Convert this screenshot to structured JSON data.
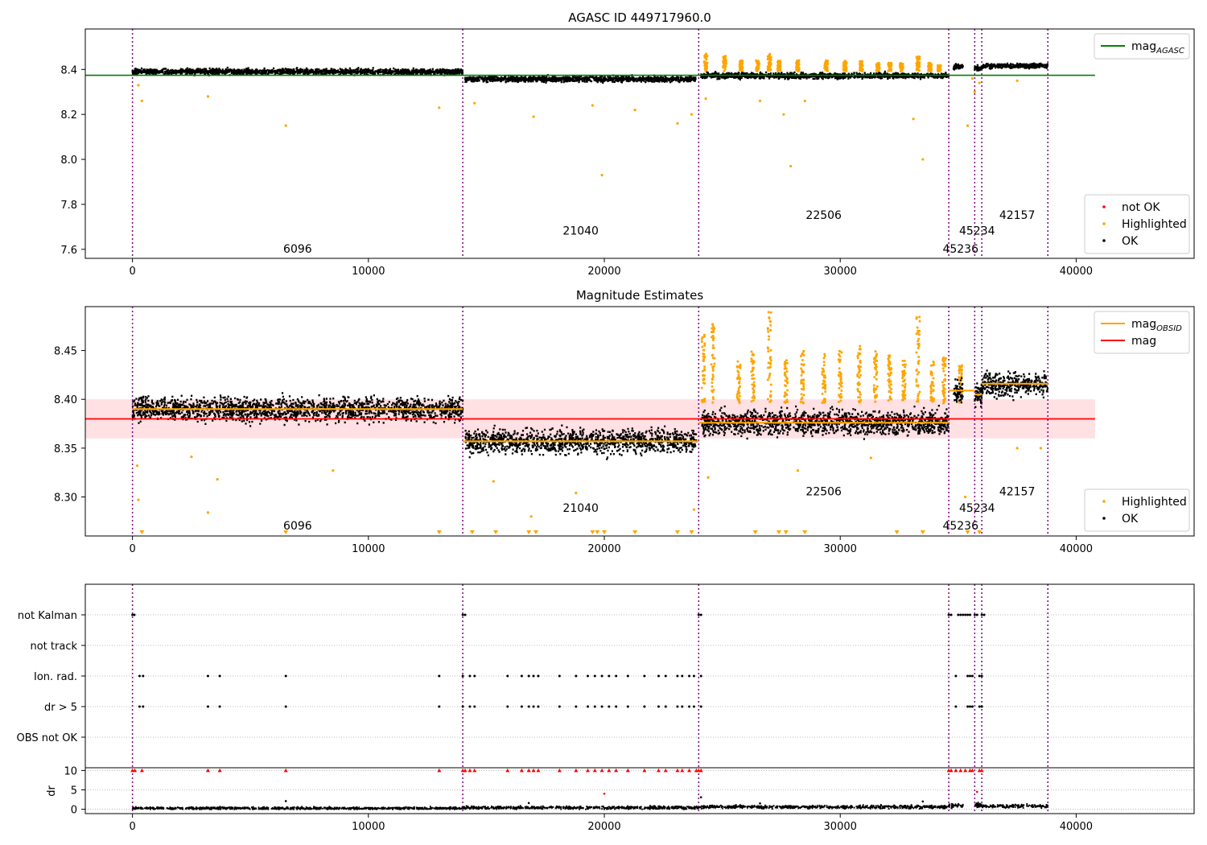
{
  "chart_data": [
    {
      "type": "scatter",
      "title": "AGASC ID 449717960.0",
      "xlim": [
        -2000,
        45000
      ],
      "ylim": [
        7.56,
        8.58
      ],
      "xticks": [
        0,
        10000,
        20000,
        30000,
        40000
      ],
      "xtick_labels": [
        "0",
        "10000",
        "20000",
        "30000",
        "40000"
      ],
      "yticks": [
        7.6,
        7.8,
        8.0,
        8.2,
        8.4
      ],
      "ytick_labels": [
        "7.6",
        "7.8",
        "8.0",
        "8.2",
        "8.4"
      ],
      "vlines_x": [
        0,
        14000,
        24000,
        34600,
        35700,
        36000,
        38800
      ],
      "hline": {
        "name": "mag_AGASC",
        "y": 8.374,
        "x": [
          -2000,
          40800
        ],
        "color": "#008000"
      },
      "segments": [
        {
          "x": [
            0,
            14000
          ],
          "mag": 8.39,
          "spread": 0.012
        },
        {
          "x": [
            14100,
            23900
          ],
          "mag": 8.357,
          "spread": 0.012
        },
        {
          "x": [
            24100,
            34600
          ],
          "mag": 8.372,
          "spread": 0.012
        },
        {
          "x": [
            34800,
            35200
          ],
          "mag": 8.412,
          "spread": 0.01
        },
        {
          "x": [
            35700,
            36000
          ],
          "mag": 8.405,
          "spread": 0.01
        },
        {
          "x": [
            36000,
            38800
          ],
          "mag": 8.416,
          "spread": 0.01
        }
      ],
      "highlight_outliers": [
        [
          250,
          8.33
        ],
        [
          400,
          8.26
        ],
        [
          3200,
          8.28
        ],
        [
          6500,
          8.15
        ],
        [
          13000,
          8.23
        ],
        [
          14500,
          8.25
        ],
        [
          17000,
          8.19
        ],
        [
          19900,
          7.93
        ],
        [
          19500,
          8.24
        ],
        [
          21300,
          8.22
        ],
        [
          23100,
          8.16
        ],
        [
          23700,
          8.2
        ],
        [
          24300,
          8.27
        ],
        [
          26600,
          8.26
        ],
        [
          27600,
          8.2
        ],
        [
          27900,
          7.97
        ],
        [
          28500,
          8.26
        ],
        [
          33100,
          8.18
        ],
        [
          33500,
          8.0
        ],
        [
          35400,
          8.15
        ],
        [
          35700,
          8.3
        ],
        [
          35900,
          8.34
        ],
        [
          35600,
          8.36
        ],
        [
          37500,
          8.35
        ]
      ],
      "spikes": [
        {
          "x": 24300,
          "peak": 8.47
        },
        {
          "x": 25100,
          "peak": 8.46
        },
        {
          "x": 25800,
          "peak": 8.44
        },
        {
          "x": 26500,
          "peak": 8.44
        },
        {
          "x": 27000,
          "peak": 8.47
        },
        {
          "x": 27400,
          "peak": 8.44
        },
        {
          "x": 28200,
          "peak": 8.44
        },
        {
          "x": 29400,
          "peak": 8.44
        },
        {
          "x": 30200,
          "peak": 8.44
        },
        {
          "x": 30900,
          "peak": 8.44
        },
        {
          "x": 31600,
          "peak": 8.43
        },
        {
          "x": 32100,
          "peak": 8.43
        },
        {
          "x": 32600,
          "peak": 8.43
        },
        {
          "x": 33300,
          "peak": 8.46
        },
        {
          "x": 33800,
          "peak": 8.43
        },
        {
          "x": 34200,
          "peak": 8.42
        }
      ],
      "annotations": [
        {
          "text": "6096",
          "x": 7000,
          "y": 7.6
        },
        {
          "text": "21040",
          "x": 19000,
          "y": 7.68
        },
        {
          "text": "22506",
          "x": 29300,
          "y": 7.75
        },
        {
          "text": "45234",
          "x": 35800,
          "y": 7.68
        },
        {
          "text": "45236",
          "x": 35100,
          "y": 7.6
        },
        {
          "text": "42157",
          "x": 37500,
          "y": 7.75
        }
      ],
      "legends": [
        {
          "location": "upper right",
          "entries": [
            {
              "label": "mag",
              "sub": "AGASC",
              "color": "#008000",
              "kind": "line"
            }
          ]
        },
        {
          "location": "lower right",
          "entries": [
            {
              "label": "not OK",
              "color": "#ff0000",
              "kind": "dot"
            },
            {
              "label": "Highlighted",
              "color": "#ffa500",
              "kind": "dot"
            },
            {
              "label": "OK",
              "color": "#000000",
              "kind": "dot"
            }
          ]
        }
      ]
    },
    {
      "type": "scatter",
      "title": "Magnitude Estimates",
      "xlim": [
        -2000,
        45000
      ],
      "ylim": [
        8.26,
        8.495
      ],
      "xticks": [
        0,
        10000,
        20000,
        30000,
        40000
      ],
      "xtick_labels": [
        "0",
        "10000",
        "20000",
        "30000",
        "40000"
      ],
      "yticks": [
        8.3,
        8.35,
        8.4,
        8.45
      ],
      "ytick_labels": [
        "8.30",
        "8.35",
        "8.40",
        "8.45"
      ],
      "vlines_x": [
        0,
        14000,
        24000,
        34600,
        35700,
        36000,
        38800
      ],
      "band": {
        "y": [
          8.36,
          8.4
        ],
        "x": [
          -2000,
          40800
        ],
        "color": "#ffe0e3"
      },
      "mag_line": {
        "name": "mag",
        "y": 8.38,
        "x": [
          -2000,
          40800
        ],
        "color": "#ff0000"
      },
      "obsid_lines": [
        {
          "x": [
            0,
            14000
          ],
          "y": 8.39
        },
        {
          "x": [
            14000,
            24000
          ],
          "y": 8.357
        },
        {
          "x": [
            24000,
            34600
          ],
          "y": 8.376
        },
        {
          "x": [
            34600,
            35700
          ],
          "y": 8.409
        },
        {
          "x": [
            35700,
            36000
          ],
          "y": 8.405
        },
        {
          "x": [
            36000,
            38800
          ],
          "y": 8.416
        }
      ],
      "segments": [
        {
          "x": [
            0,
            14000
          ],
          "mag": 8.39,
          "spread": 0.012
        },
        {
          "x": [
            14100,
            23900
          ],
          "mag": 8.357,
          "spread": 0.012
        },
        {
          "x": [
            24100,
            34600
          ],
          "mag": 8.376,
          "spread": 0.012
        },
        {
          "x": [
            34800,
            35200
          ],
          "mag": 8.409,
          "spread": 0.012
        },
        {
          "x": [
            35700,
            36000
          ],
          "mag": 8.405,
          "spread": 0.01
        },
        {
          "x": [
            36000,
            38800
          ],
          "mag": 8.416,
          "spread": 0.012
        }
      ],
      "highlight_outliers": [
        [
          250,
          8.297
        ],
        [
          200,
          8.332
        ],
        [
          3200,
          8.284
        ],
        [
          3600,
          8.318
        ],
        [
          2500,
          8.341
        ],
        [
          8500,
          8.327
        ],
        [
          15300,
          8.316
        ],
        [
          16900,
          8.28
        ],
        [
          18800,
          8.304
        ],
        [
          23800,
          8.287
        ],
        [
          24400,
          8.32
        ],
        [
          28200,
          8.327
        ],
        [
          31300,
          8.34
        ],
        [
          35300,
          8.3
        ],
        [
          37500,
          8.35
        ],
        [
          38500,
          8.35
        ]
      ],
      "clipped_triangles_x": [
        400,
        6500,
        13000,
        14400,
        15400,
        16800,
        17100,
        19500,
        19700,
        20000,
        21300,
        23100,
        23700,
        26400,
        27400,
        27700,
        28500,
        32400,
        33500,
        35400,
        35900
      ],
      "spikes": [
        {
          "x": 24200,
          "peak": 8.47
        },
        {
          "x": 24600,
          "peak": 8.48
        },
        {
          "x": 25700,
          "peak": 8.44
        },
        {
          "x": 26300,
          "peak": 8.45
        },
        {
          "x": 27000,
          "peak": 8.49
        },
        {
          "x": 27700,
          "peak": 8.44
        },
        {
          "x": 28400,
          "peak": 8.45
        },
        {
          "x": 29300,
          "peak": 8.455
        },
        {
          "x": 30000,
          "peak": 8.45
        },
        {
          "x": 30800,
          "peak": 8.455
        },
        {
          "x": 31500,
          "peak": 8.45
        },
        {
          "x": 32100,
          "peak": 8.445
        },
        {
          "x": 32700,
          "peak": 8.44
        },
        {
          "x": 33300,
          "peak": 8.485
        },
        {
          "x": 33900,
          "peak": 8.44
        },
        {
          "x": 34400,
          "peak": 8.445
        },
        {
          "x": 35100,
          "peak": 8.435
        }
      ],
      "annotations": [
        {
          "text": "6096",
          "x": 7000,
          "y": 8.27
        },
        {
          "text": "21040",
          "x": 19000,
          "y": 8.288
        },
        {
          "text": "22506",
          "x": 29300,
          "y": 8.305
        },
        {
          "text": "45234",
          "x": 35800,
          "y": 8.288
        },
        {
          "text": "45236",
          "x": 35100,
          "y": 8.27
        },
        {
          "text": "42157",
          "x": 37500,
          "y": 8.305
        }
      ],
      "legends": [
        {
          "location": "upper right",
          "entries": [
            {
              "label": "mag",
              "sub": "OBSID",
              "color": "#ffa500",
              "kind": "line"
            },
            {
              "label": "mag",
              "sub": "",
              "color": "#ff0000",
              "kind": "line"
            }
          ]
        },
        {
          "location": "lower right",
          "entries": [
            {
              "label": "Highlighted",
              "color": "#ffa500",
              "kind": "dot"
            },
            {
              "label": "OK",
              "color": "#000000",
              "kind": "dot"
            }
          ]
        }
      ]
    },
    {
      "type": "scatter",
      "xlim": [
        -2000,
        45000
      ],
      "xticks": [
        0,
        10000,
        20000,
        30000,
        40000
      ],
      "xtick_labels": [
        "0",
        "10000",
        "20000",
        "30000",
        "40000"
      ],
      "vlines_x": [
        0,
        14000,
        24000,
        34600,
        35700,
        36000,
        38800
      ],
      "flag_categories": [
        "not Kalman",
        "not track",
        "Ion. rad.",
        "dr > 5",
        "OBS not OK"
      ],
      "flag_points": {
        "not Kalman": [
          0,
          80,
          14000,
          14100,
          24000,
          24100,
          34600,
          34700,
          35000,
          35100,
          35200,
          35300,
          35400,
          35500,
          35700,
          35800,
          36000,
          36100
        ],
        "not track": [],
        "Ion. rad.": [
          300,
          450,
          3200,
          3700,
          6500,
          13000,
          14000,
          14300,
          14500,
          15900,
          16500,
          16800,
          17000,
          17200,
          18100,
          18800,
          19300,
          19600,
          19900,
          20200,
          20500,
          21000,
          21700,
          22300,
          22600,
          23100,
          23300,
          23600,
          23800,
          24100,
          34900,
          35400,
          35500,
          35600,
          35900,
          36000
        ],
        "dr > 5": [
          300,
          450,
          3200,
          3700,
          6500,
          13000,
          14000,
          14300,
          14500,
          15900,
          16500,
          16800,
          17000,
          17200,
          18100,
          18800,
          19300,
          19600,
          19900,
          20200,
          20500,
          21000,
          21700,
          22300,
          22600,
          23100,
          23300,
          23600,
          23800,
          24100,
          34900,
          35400,
          35500,
          35600,
          35900,
          36000
        ],
        "OBS not OK": []
      },
      "dr_ylabel": "dr",
      "dr_ylim": [
        -0.3,
        10.5
      ],
      "dr_yticks": [
        0,
        5,
        10
      ],
      "dr_ytick_labels": [
        "0",
        "5",
        "10"
      ],
      "dr_clipped_x": [
        0,
        100,
        400,
        3200,
        3700,
        6500,
        13000,
        14000,
        14100,
        14300,
        14500,
        15900,
        16500,
        16800,
        17000,
        17200,
        18100,
        18800,
        19300,
        19600,
        19900,
        20200,
        20500,
        21000,
        21700,
        22300,
        22600,
        23100,
        23300,
        23600,
        23900,
        24000,
        24100,
        34600,
        34700,
        34900,
        35100,
        35300,
        35500,
        35600,
        35900,
        36000
      ],
      "dr_outliers": [
        [
          6500,
          2.1
        ],
        [
          20000,
          4.0
        ],
        [
          24100,
          3.1
        ],
        [
          35800,
          4.5
        ],
        [
          33500,
          2.0
        ],
        [
          16800,
          1.6
        ],
        [
          26600,
          1.5
        ]
      ],
      "dr_segments": [
        {
          "x": [
            0,
            14000
          ],
          "mean": 0.25,
          "spread": 0.3
        },
        {
          "x": [
            14000,
            24000
          ],
          "mean": 0.4,
          "spread": 0.35
        },
        {
          "x": [
            24000,
            34600
          ],
          "mean": 0.6,
          "spread": 0.4
        },
        {
          "x": [
            34600,
            35200
          ],
          "mean": 0.9,
          "spread": 0.5
        },
        {
          "x": [
            35700,
            36000
          ],
          "mean": 1.0,
          "spread": 0.5
        },
        {
          "x": [
            36000,
            38800
          ],
          "mean": 0.8,
          "spread": 0.4
        }
      ]
    }
  ]
}
